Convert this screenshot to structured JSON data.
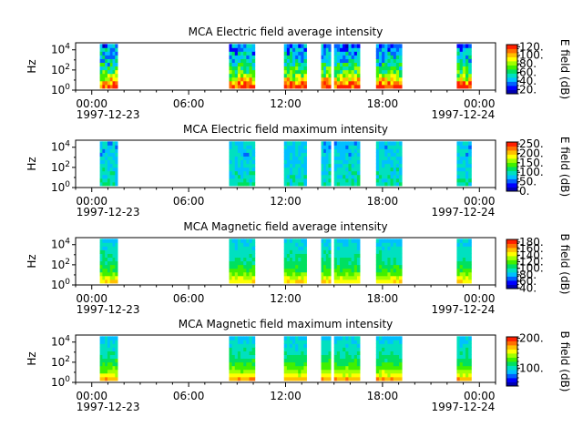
{
  "figure": {
    "background": "#ffffff"
  },
  "time_axis": {
    "ticks": [
      "00:00",
      "06:00",
      "12:00",
      "18:00",
      "00:00"
    ],
    "tick_hours": [
      0,
      6,
      12,
      18,
      24
    ],
    "date_start": "1997-12-23",
    "date_end": "1997-12-24",
    "range_hours": [
      -1,
      25
    ]
  },
  "freq_axis": {
    "ylabel": "Hz",
    "scale": "log",
    "range_log10": [
      0,
      4.7
    ],
    "ticks": [
      {
        "base": "10",
        "exp": "0",
        "log10": 0
      },
      {
        "base": "10",
        "exp": "2",
        "log10": 2
      },
      {
        "base": "10",
        "exp": "4",
        "log10": 4
      }
    ]
  },
  "segments_hours": [
    [
      0.5,
      1.6
    ],
    [
      8.5,
      10.1
    ],
    [
      11.9,
      13.3
    ],
    [
      14.2,
      14.8
    ],
    [
      15.0,
      16.6
    ],
    [
      17.6,
      19.2
    ],
    [
      22.6,
      23.5
    ]
  ],
  "colormap": [
    "#0000b0",
    "#0000ff",
    "#0060ff",
    "#00c0ff",
    "#00e0c0",
    "#00e060",
    "#40f000",
    "#a0ff00",
    "#ffff00",
    "#ffc000",
    "#ff7000",
    "#ff2000"
  ],
  "chart_data": [
    {
      "type": "heatmap",
      "title": "MCA  Electric field average intensity",
      "colorbar_label": "E field (dB)",
      "colorbar_range": [
        10,
        125
      ],
      "colorbar_ticks": [
        "20.",
        "40.",
        "60.",
        "80.",
        "100.",
        "120."
      ],
      "colorbar_tick_values": [
        20,
        40,
        60,
        80,
        100,
        120
      ],
      "profile": [
        0.95,
        0.82,
        0.7,
        0.6,
        0.52,
        0.46,
        0.4,
        0.36,
        0.33,
        0.3,
        0.27,
        0.22
      ],
      "variation": 0.16
    },
    {
      "type": "heatmap",
      "title": "MCA  Electric field maximum intensity",
      "colorbar_label": "E field (dB)",
      "colorbar_range": [
        0,
        260
      ],
      "colorbar_ticks": [
        "0.",
        "50.",
        "100.",
        "150.",
        "200.",
        "250."
      ],
      "colorbar_tick_values": [
        0,
        50,
        100,
        150,
        200,
        250
      ],
      "profile": [
        0.4,
        0.38,
        0.37,
        0.36,
        0.35,
        0.34,
        0.33,
        0.33,
        0.32,
        0.32,
        0.31,
        0.3
      ],
      "variation": 0.08
    },
    {
      "type": "heatmap",
      "title": "MCA  Magnetic field average intensity",
      "colorbar_label": "B field (dB)",
      "colorbar_range": [
        38,
        188
      ],
      "colorbar_ticks": [
        "40.",
        "60.",
        "80.",
        "100.",
        "120.",
        "140.",
        "160.",
        "180."
      ],
      "colorbar_tick_values": [
        40,
        60,
        80,
        100,
        120,
        140,
        160,
        180
      ],
      "profile": [
        0.74,
        0.66,
        0.58,
        0.52,
        0.48,
        0.45,
        0.42,
        0.4,
        0.38,
        0.36,
        0.34,
        0.32
      ],
      "variation": 0.05
    },
    {
      "type": "heatmap",
      "title": "MCA  Magnetic field maximum intensity",
      "colorbar_label": "B field (dB)",
      "colorbar_range": [
        40,
        205
      ],
      "colorbar_ticks": [
        "100.",
        "200."
      ],
      "colorbar_tick_values": [
        100,
        200
      ],
      "profile": [
        0.8,
        0.7,
        0.62,
        0.55,
        0.5,
        0.46,
        0.42,
        0.4,
        0.38,
        0.36,
        0.34,
        0.32
      ],
      "variation": 0.05
    }
  ]
}
